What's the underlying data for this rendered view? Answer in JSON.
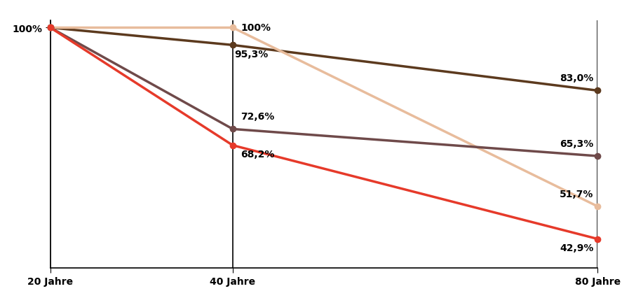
{
  "chart_data": {
    "type": "line",
    "x": [
      20,
      40,
      80
    ],
    "series": [
      {
        "color": "#5c3a1e",
        "values": [
          100,
          95.3,
          83.0
        ],
        "value_labels": [
          null,
          "95,3%",
          "83,0%"
        ]
      },
      {
        "color": "#e8bc9c",
        "values": [
          100,
          100,
          51.7
        ],
        "value_labels": [
          null,
          "100%",
          "51,7%"
        ]
      },
      {
        "color": "#6f4a4a",
        "values": [
          100,
          72.6,
          65.3
        ],
        "value_labels": [
          null,
          "72,6%",
          "65,3%"
        ]
      },
      {
        "color": "#e63a2a",
        "values": [
          100,
          68.2,
          42.9
        ],
        "value_labels": [
          null,
          "68,2%",
          "42,9%"
        ]
      }
    ],
    "xlim": [
      20,
      80
    ],
    "xticks": [
      {
        "value": 20,
        "label": "20 Jahre"
      },
      {
        "value": 40,
        "label": "40 Jahre"
      },
      {
        "value": 80,
        "label": "80 Jahre"
      }
    ],
    "ylim": [
      35,
      102
    ],
    "yticks": [
      {
        "value": 100,
        "label": "100%"
      }
    ],
    "grid": "x",
    "data_labels": true,
    "marker": "o"
  }
}
